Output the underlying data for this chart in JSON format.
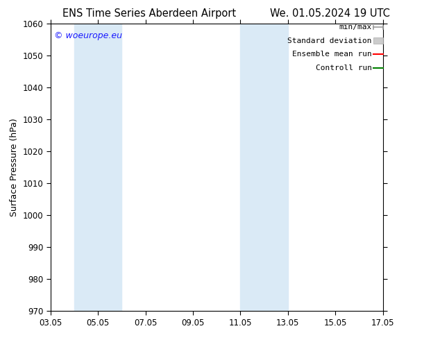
{
  "title_left": "ENS Time Series Aberdeen Airport",
  "title_right": "We. 01.05.2024 19 UTC",
  "ylabel": "Surface Pressure (hPa)",
  "ylim": [
    970,
    1060
  ],
  "yticks": [
    970,
    980,
    990,
    1000,
    1010,
    1020,
    1030,
    1040,
    1050,
    1060
  ],
  "xtick_labels": [
    "03.05",
    "05.05",
    "07.05",
    "09.05",
    "11.05",
    "13.05",
    "15.05",
    "17.05"
  ],
  "xtick_positions": [
    0,
    2,
    4,
    6,
    8,
    10,
    12,
    14
  ],
  "blue_bands": [
    {
      "x_start": 1.0,
      "x_end": 3.0
    },
    {
      "x_start": 8.0,
      "x_end": 10.0
    }
  ],
  "band_color": "#daeaf6",
  "watermark": "© woeurope.eu",
  "watermark_color": "#1a1aff",
  "legend_labels": [
    "min/max",
    "Standard deviation",
    "Ensemble mean run",
    "Controll run"
  ],
  "legend_line_colors": [
    "#aaaaaa",
    "#cccccc",
    "#ff0000",
    "#008000"
  ],
  "background_color": "#ffffff",
  "title_fontsize": 10.5,
  "axis_label_fontsize": 9,
  "tick_fontsize": 8.5,
  "legend_fontsize": 8,
  "watermark_fontsize": 9
}
